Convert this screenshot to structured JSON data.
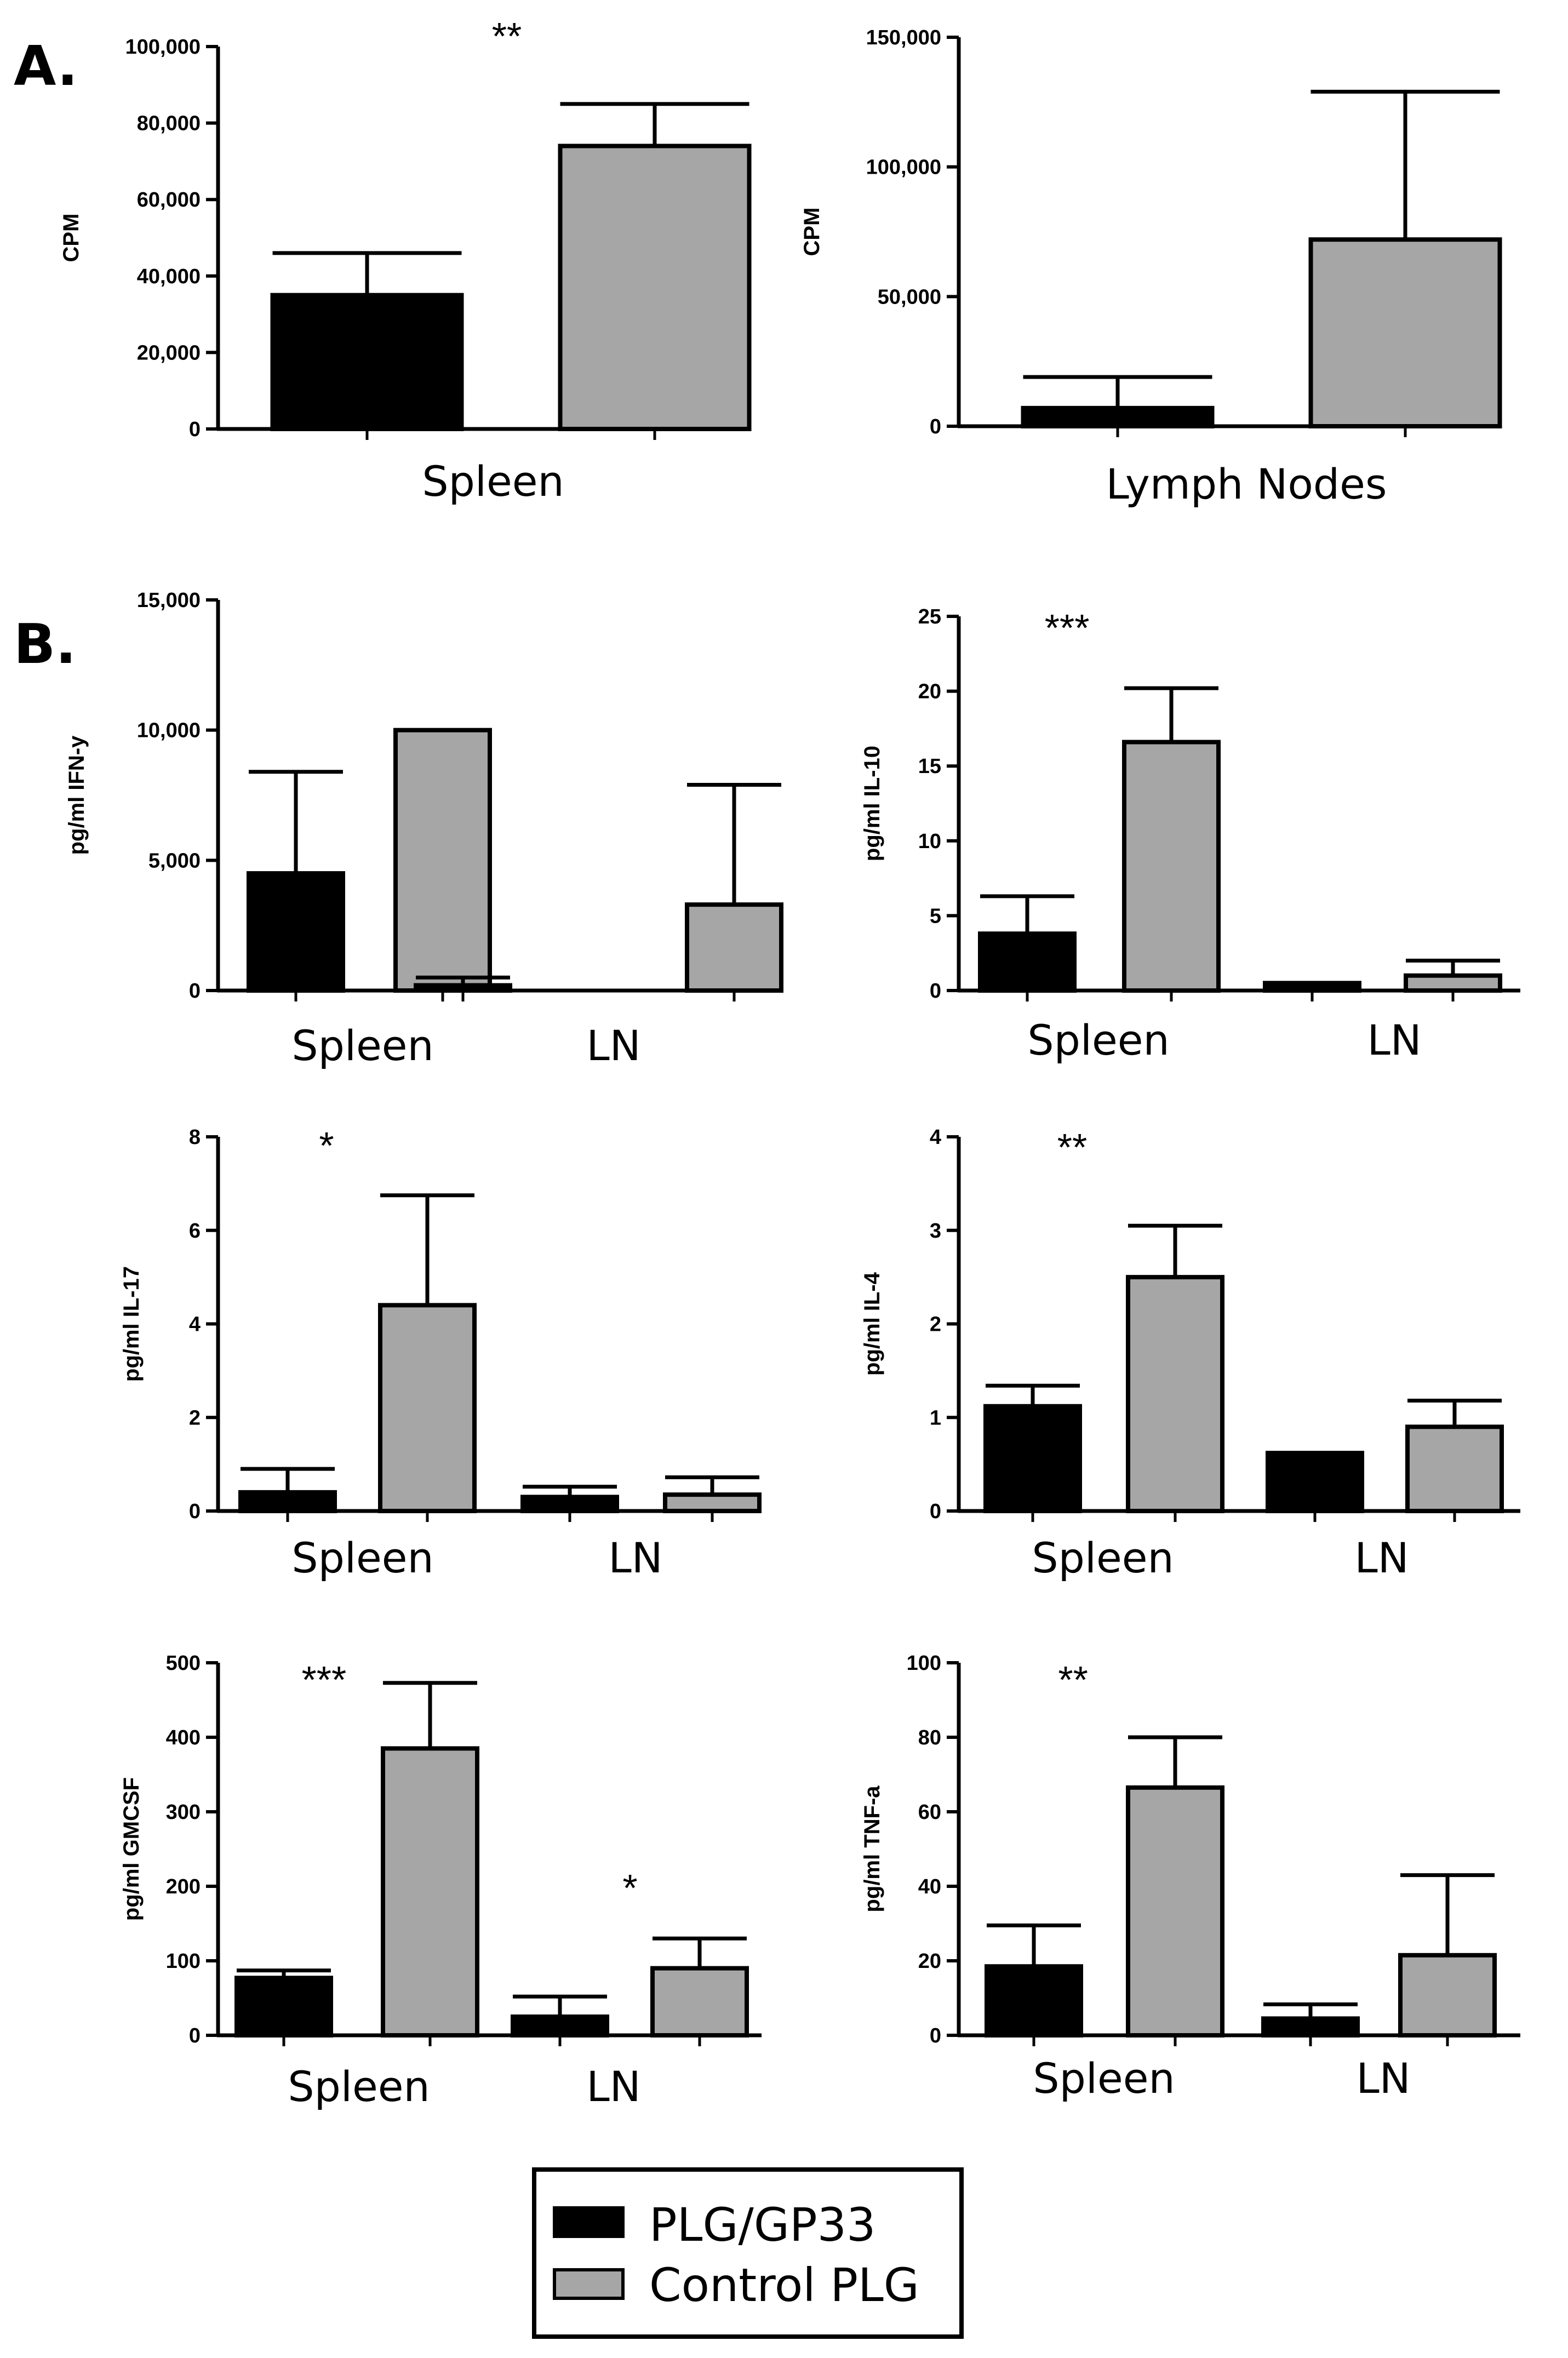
{
  "panel_labels": [
    "A.",
    "B."
  ],
  "legend": {
    "items": [
      {
        "label": "PLG/GP33",
        "color": "#000000"
      },
      {
        "label": "Control PLG",
        "color": "#a6a6a6"
      }
    ]
  },
  "chart_data": [
    {
      "type": "bar",
      "ylabel": "CPM",
      "ylim": [
        0,
        100000
      ],
      "yticks": [
        "0",
        "20,000",
        "40,000",
        "60,000",
        "80,000",
        "100,000"
      ],
      "categories": [
        "Spleen"
      ],
      "series": [
        {
          "name": "PLG/GP33",
          "values": [
            35000
          ],
          "errors": [
            11000
          ]
        },
        {
          "name": "Control PLG",
          "values": [
            74000
          ],
          "errors": [
            11000
          ]
        }
      ],
      "annotations": [
        {
          "text": "**",
          "category": 0
        }
      ]
    },
    {
      "type": "bar",
      "ylabel": "CPM",
      "ylim": [
        0,
        150000
      ],
      "yticks": [
        "0",
        "50,000",
        "100,000",
        "150,000"
      ],
      "categories": [
        "Lymph Nodes"
      ],
      "series": [
        {
          "name": "PLG/GP33",
          "values": [
            7000
          ],
          "errors": [
            12000
          ]
        },
        {
          "name": "Control PLG",
          "values": [
            72000
          ],
          "errors": [
            57000
          ]
        }
      ],
      "annotations": []
    },
    {
      "type": "bar",
      "ylabel": "pg/ml IFN-y",
      "ylim": [
        0,
        15000
      ],
      "yticks": [
        "0",
        "5,000",
        "10,000",
        "15,000"
      ],
      "categories": [
        "Spleen",
        "LN"
      ],
      "series": [
        {
          "name": "PLG/GP33",
          "values": [
            4500,
            200
          ],
          "errors": [
            3900,
            300
          ]
        },
        {
          "name": "Control PLG",
          "values": [
            10000,
            3300
          ],
          "errors": [
            0,
            4600
          ]
        }
      ],
      "annotations": []
    },
    {
      "type": "bar",
      "ylabel": "pg/ml IL-10",
      "ylim": [
        0,
        25
      ],
      "yticks": [
        "0",
        "5",
        "10",
        "15",
        "20",
        "25"
      ],
      "categories": [
        "Spleen",
        "LN"
      ],
      "series": [
        {
          "name": "PLG/GP33",
          "values": [
            3.8,
            0.5
          ],
          "errors": [
            2.5,
            0
          ]
        },
        {
          "name": "Control PLG",
          "values": [
            16.6,
            1.0
          ],
          "errors": [
            3.6,
            1.0
          ]
        }
      ],
      "annotations": [
        {
          "text": "***",
          "category": 0
        }
      ]
    },
    {
      "type": "bar",
      "ylabel": "pg/ml IL-17",
      "ylim": [
        0,
        8
      ],
      "yticks": [
        "0",
        "2",
        "4",
        "6",
        "8"
      ],
      "categories": [
        "Spleen",
        "LN"
      ],
      "series": [
        {
          "name": "PLG/GP33",
          "values": [
            0.4,
            0.3
          ],
          "errors": [
            0.5,
            0.22
          ]
        },
        {
          "name": "Control PLG",
          "values": [
            4.4,
            0.35
          ],
          "errors": [
            2.35,
            0.37
          ]
        }
      ],
      "annotations": [
        {
          "text": "*",
          "category": 0
        }
      ]
    },
    {
      "type": "bar",
      "ylabel": "pg/ml IL-4",
      "ylim": [
        0,
        4
      ],
      "yticks": [
        "0",
        "1",
        "2",
        "3",
        "4"
      ],
      "categories": [
        "Spleen",
        "LN"
      ],
      "series": [
        {
          "name": "PLG/GP33",
          "values": [
            1.12,
            0.62
          ],
          "errors": [
            0.22,
            0
          ]
        },
        {
          "name": "Control PLG",
          "values": [
            2.5,
            0.9
          ],
          "errors": [
            0.55,
            0.28
          ]
        }
      ],
      "annotations": [
        {
          "text": "**",
          "category": 0
        }
      ]
    },
    {
      "type": "bar",
      "ylabel": "pg/ml GMCSF",
      "ylim": [
        0,
        500
      ],
      "yticks": [
        "0",
        "100",
        "200",
        "300",
        "400",
        "500"
      ],
      "categories": [
        "Spleen",
        "LN"
      ],
      "series": [
        {
          "name": "PLG/GP33",
          "values": [
            77,
            25
          ],
          "errors": [
            10,
            27
          ]
        },
        {
          "name": "Control PLG",
          "values": [
            385,
            90
          ],
          "errors": [
            88,
            40
          ]
        }
      ],
      "annotations": [
        {
          "text": "***",
          "category": 0
        },
        {
          "text": "*",
          "category": 1
        }
      ]
    },
    {
      "type": "bar",
      "ylabel": "pg/ml TNF-a",
      "ylim": [
        0,
        100
      ],
      "yticks": [
        "0",
        "20",
        "40",
        "60",
        "80",
        "100"
      ],
      "categories": [
        "Spleen",
        "LN"
      ],
      "series": [
        {
          "name": "PLG/GP33",
          "values": [
            18.5,
            4.5
          ],
          "errors": [
            11,
            3.8
          ]
        },
        {
          "name": "Control PLG",
          "values": [
            66.5,
            21.5
          ],
          "errors": [
            13.5,
            21.5
          ]
        }
      ],
      "annotations": [
        {
          "text": "**",
          "category": 0
        }
      ]
    }
  ]
}
